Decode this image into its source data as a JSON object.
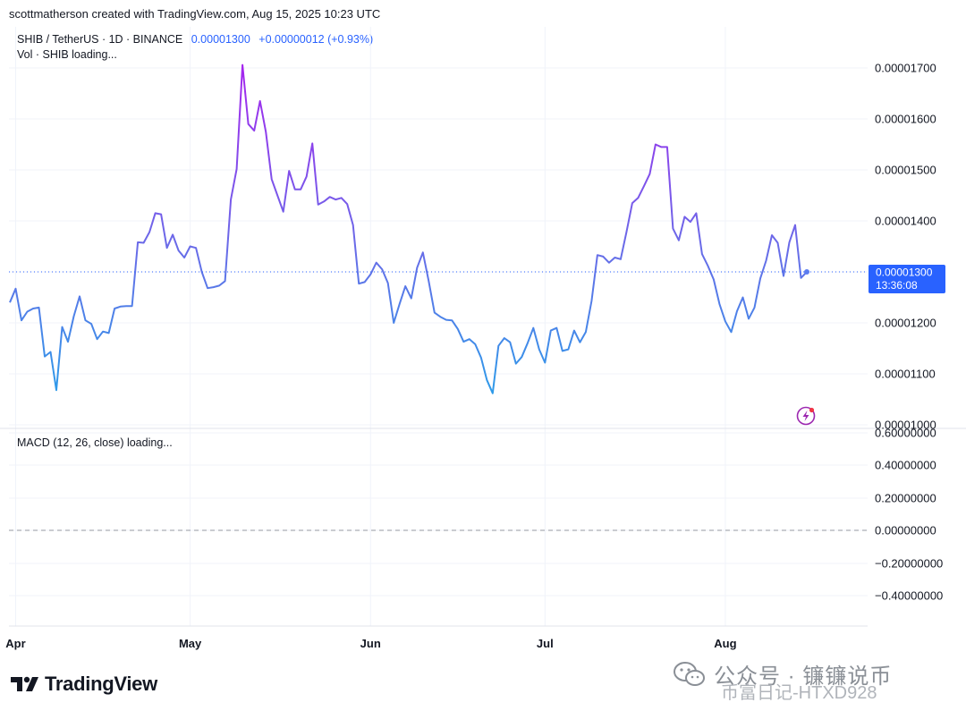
{
  "header": {
    "credit": "scottmatherson created with TradingView.com, Aug 15, 2025 10:23 UTC"
  },
  "legend": {
    "symbol": "SHIB / TetherUS · 1D · BINANCE",
    "price": "0.00001300",
    "change": "+0.00000012 (+0.93%)",
    "volume": "Vol · SHIB loading..."
  },
  "macd": {
    "title": "MACD (12, 26, close) loading...",
    "ticks": [
      "0.60000000",
      "0.40000000",
      "0.20000000",
      "0.00000000",
      "−0.20000000",
      "−0.40000000"
    ]
  },
  "price_tag": {
    "value": "0.00001300",
    "countdown": "13:36:08"
  },
  "brand": {
    "logo_text": "TradingView"
  },
  "watermark": {
    "line1": "公众号 · 镰镰说币",
    "line2": "币富日记-HTXD928"
  },
  "colors": {
    "price_line_low": "#2e9be9",
    "price_line_high": "#a624ee",
    "accent": "#2962ff",
    "grid": "#f0f3fa"
  },
  "chart_data": {
    "type": "line",
    "title": "SHIB / TetherUS · 1D · BINANCE",
    "xlabel": "",
    "ylabel": "",
    "x_ticks": [
      "Apr",
      "May",
      "Jun",
      "Jul",
      "Aug"
    ],
    "y_ticks": [
      "0.00001000",
      "0.00001100",
      "0.00001200",
      "0.00001300",
      "0.00001400",
      "0.00001500",
      "0.00001600",
      "0.00001700"
    ],
    "ylim": [
      1e-05,
      1.725e-05
    ],
    "x_start": "2025-04-01",
    "x_end": "2025-08-15",
    "grid": true,
    "last_price": 1.3e-05,
    "series": [
      {
        "name": "",
        "points": [
          [
            "2025-03-31",
            1.24e-05
          ],
          [
            "2025-04-01",
            1.267e-05
          ],
          [
            "2025-04-02",
            1.205e-05
          ],
          [
            "2025-04-03",
            1.222e-05
          ],
          [
            "2025-04-04",
            1.228e-05
          ],
          [
            "2025-04-05",
            1.23e-05
          ],
          [
            "2025-04-06",
            1.134e-05
          ],
          [
            "2025-04-07",
            1.143e-05
          ],
          [
            "2025-04-08",
            1.068e-05
          ],
          [
            "2025-04-09",
            1.192e-05
          ],
          [
            "2025-04-10",
            1.163e-05
          ],
          [
            "2025-04-11",
            1.213e-05
          ],
          [
            "2025-04-12",
            1.252e-05
          ],
          [
            "2025-04-13",
            1.205e-05
          ],
          [
            "2025-04-14",
            1.198e-05
          ],
          [
            "2025-04-15",
            1.168e-05
          ],
          [
            "2025-04-16",
            1.183e-05
          ],
          [
            "2025-04-17",
            1.18e-05
          ],
          [
            "2025-04-18",
            1.228e-05
          ],
          [
            "2025-04-19",
            1.232e-05
          ],
          [
            "2025-04-20",
            1.233e-05
          ],
          [
            "2025-04-21",
            1.233e-05
          ],
          [
            "2025-04-22",
            1.358e-05
          ],
          [
            "2025-04-23",
            1.357e-05
          ],
          [
            "2025-04-24",
            1.378e-05
          ],
          [
            "2025-04-25",
            1.415e-05
          ],
          [
            "2025-04-26",
            1.413e-05
          ],
          [
            "2025-04-27",
            1.347e-05
          ],
          [
            "2025-04-28",
            1.373e-05
          ],
          [
            "2025-04-29",
            1.342e-05
          ],
          [
            "2025-04-30",
            1.328e-05
          ],
          [
            "2025-05-01",
            1.35e-05
          ],
          [
            "2025-05-02",
            1.347e-05
          ],
          [
            "2025-05-03",
            1.3e-05
          ],
          [
            "2025-05-04",
            1.268e-05
          ],
          [
            "2025-05-05",
            1.27e-05
          ],
          [
            "2025-05-06",
            1.273e-05
          ],
          [
            "2025-05-07",
            1.282e-05
          ],
          [
            "2025-05-08",
            1.442e-05
          ],
          [
            "2025-05-09",
            1.502e-05
          ],
          [
            "2025-05-10",
            1.706e-05
          ],
          [
            "2025-05-11",
            1.59e-05
          ],
          [
            "2025-05-12",
            1.577e-05
          ],
          [
            "2025-05-13",
            1.635e-05
          ],
          [
            "2025-05-14",
            1.575e-05
          ],
          [
            "2025-05-15",
            1.482e-05
          ],
          [
            "2025-05-16",
            1.45e-05
          ],
          [
            "2025-05-17",
            1.418e-05
          ],
          [
            "2025-05-18",
            1.498e-05
          ],
          [
            "2025-05-19",
            1.462e-05
          ],
          [
            "2025-05-20",
            1.462e-05
          ],
          [
            "2025-05-21",
            1.487e-05
          ],
          [
            "2025-05-22",
            1.552e-05
          ],
          [
            "2025-05-23",
            1.432e-05
          ],
          [
            "2025-05-24",
            1.438e-05
          ],
          [
            "2025-05-25",
            1.447e-05
          ],
          [
            "2025-05-26",
            1.442e-05
          ],
          [
            "2025-05-27",
            1.445e-05
          ],
          [
            "2025-05-28",
            1.433e-05
          ],
          [
            "2025-05-29",
            1.392e-05
          ],
          [
            "2025-05-30",
            1.277e-05
          ],
          [
            "2025-05-31",
            1.28e-05
          ],
          [
            "2025-06-01",
            1.295e-05
          ],
          [
            "2025-06-02",
            1.318e-05
          ],
          [
            "2025-06-03",
            1.305e-05
          ],
          [
            "2025-06-04",
            1.278e-05
          ],
          [
            "2025-06-05",
            1.2e-05
          ],
          [
            "2025-06-06",
            1.237e-05
          ],
          [
            "2025-06-07",
            1.272e-05
          ],
          [
            "2025-06-08",
            1.248e-05
          ],
          [
            "2025-06-09",
            1.308e-05
          ],
          [
            "2025-06-10",
            1.338e-05
          ],
          [
            "2025-06-11",
            1.282e-05
          ],
          [
            "2025-06-12",
            1.22e-05
          ],
          [
            "2025-06-13",
            1.212e-05
          ],
          [
            "2025-06-14",
            1.206e-05
          ],
          [
            "2025-06-15",
            1.205e-05
          ],
          [
            "2025-06-16",
            1.188e-05
          ],
          [
            "2025-06-17",
            1.163e-05
          ],
          [
            "2025-06-18",
            1.168e-05
          ],
          [
            "2025-06-19",
            1.158e-05
          ],
          [
            "2025-06-20",
            1.132e-05
          ],
          [
            "2025-06-21",
            1.088e-05
          ],
          [
            "2025-06-22",
            1.062e-05
          ],
          [
            "2025-06-23",
            1.155e-05
          ],
          [
            "2025-06-24",
            1.17e-05
          ],
          [
            "2025-06-25",
            1.162e-05
          ],
          [
            "2025-06-26",
            1.12e-05
          ],
          [
            "2025-06-27",
            1.133e-05
          ],
          [
            "2025-06-28",
            1.16e-05
          ],
          [
            "2025-06-29",
            1.19e-05
          ],
          [
            "2025-06-30",
            1.148e-05
          ],
          [
            "2025-07-01",
            1.122e-05
          ],
          [
            "2025-07-02",
            1.185e-05
          ],
          [
            "2025-07-03",
            1.19e-05
          ],
          [
            "2025-07-04",
            1.145e-05
          ],
          [
            "2025-07-05",
            1.148e-05
          ],
          [
            "2025-07-06",
            1.185e-05
          ],
          [
            "2025-07-07",
            1.162e-05
          ],
          [
            "2025-07-08",
            1.182e-05
          ],
          [
            "2025-07-09",
            1.243e-05
          ],
          [
            "2025-07-10",
            1.333e-05
          ],
          [
            "2025-07-11",
            1.33e-05
          ],
          [
            "2025-07-12",
            1.318e-05
          ],
          [
            "2025-07-13",
            1.328e-05
          ],
          [
            "2025-07-14",
            1.325e-05
          ],
          [
            "2025-07-15",
            1.378e-05
          ],
          [
            "2025-07-16",
            1.435e-05
          ],
          [
            "2025-07-17",
            1.445e-05
          ],
          [
            "2025-07-18",
            1.468e-05
          ],
          [
            "2025-07-19",
            1.492e-05
          ],
          [
            "2025-07-20",
            1.55e-05
          ],
          [
            "2025-07-21",
            1.545e-05
          ],
          [
            "2025-07-22",
            1.545e-05
          ],
          [
            "2025-07-23",
            1.385e-05
          ],
          [
            "2025-07-24",
            1.362e-05
          ],
          [
            "2025-07-25",
            1.408e-05
          ],
          [
            "2025-07-26",
            1.398e-05
          ],
          [
            "2025-07-27",
            1.415e-05
          ],
          [
            "2025-07-28",
            1.335e-05
          ],
          [
            "2025-07-29",
            1.312e-05
          ],
          [
            "2025-07-30",
            1.285e-05
          ],
          [
            "2025-07-31",
            1.237e-05
          ],
          [
            "2025-08-01",
            1.203e-05
          ],
          [
            "2025-08-02",
            1.182e-05
          ],
          [
            "2025-08-03",
            1.223e-05
          ],
          [
            "2025-08-04",
            1.25e-05
          ],
          [
            "2025-08-05",
            1.208e-05
          ],
          [
            "2025-08-06",
            1.23e-05
          ],
          [
            "2025-08-07",
            1.287e-05
          ],
          [
            "2025-08-08",
            1.322e-05
          ],
          [
            "2025-08-09",
            1.372e-05
          ],
          [
            "2025-08-10",
            1.357e-05
          ],
          [
            "2025-08-11",
            1.292e-05
          ],
          [
            "2025-08-12",
            1.358e-05
          ],
          [
            "2025-08-13",
            1.392e-05
          ],
          [
            "2025-08-14",
            1.288e-05
          ],
          [
            "2025-08-15",
            1.3e-05
          ]
        ]
      }
    ]
  }
}
